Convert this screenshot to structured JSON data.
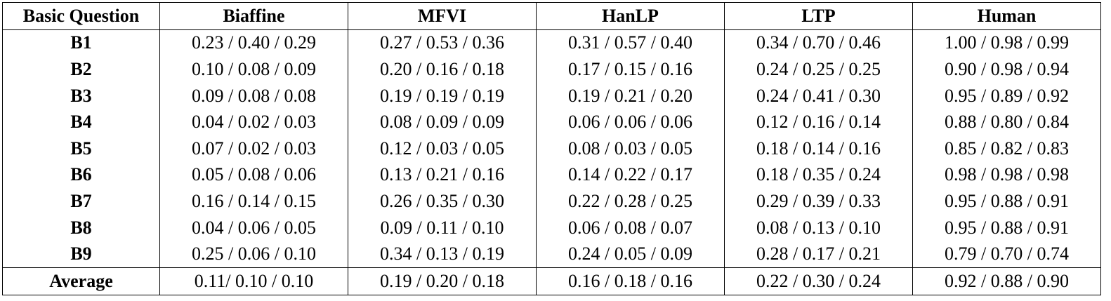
{
  "table": {
    "header": [
      "Basic Question",
      "Biaffine",
      "MFVI",
      "HanLP",
      "LTP",
      "Human"
    ],
    "rows": [
      [
        "B1",
        "0.23 / 0.40 / 0.29",
        "0.27 / 0.53 / 0.36",
        "0.31 / 0.57 / 0.40",
        "0.34 / 0.70 / 0.46",
        "1.00 / 0.98 / 0.99"
      ],
      [
        "B2",
        "0.10 / 0.08 / 0.09",
        "0.20 / 0.16 / 0.18",
        "0.17 / 0.15 / 0.16",
        "0.24 / 0.25 / 0.25",
        "0.90 / 0.98 / 0.94"
      ],
      [
        "B3",
        "0.09 / 0.08 / 0.08",
        "0.19 / 0.19 / 0.19",
        "0.19 / 0.21 / 0.20",
        "0.24 / 0.41 / 0.30",
        "0.95 / 0.89 / 0.92"
      ],
      [
        "B4",
        "0.04 / 0.02 / 0.03",
        "0.08 / 0.09 / 0.09",
        "0.06 / 0.06 / 0.06",
        "0.12 / 0.16 / 0.14",
        "0.88 / 0.80 / 0.84"
      ],
      [
        "B5",
        "0.07 / 0.02 / 0.03",
        "0.12 / 0.03 / 0.05",
        "0.08 / 0.03 / 0.05",
        "0.18 / 0.14 / 0.16",
        "0.85 / 0.82 / 0.83"
      ],
      [
        "B6",
        "0.05 / 0.08 / 0.06",
        "0.13 / 0.21 / 0.16",
        "0.14 / 0.22 / 0.17",
        "0.18 / 0.35 / 0.24",
        "0.98 / 0.98 / 0.98"
      ],
      [
        "B7",
        "0.16 / 0.14 / 0.15",
        "0.26 / 0.35 / 0.30",
        "0.22 / 0.28 / 0.25",
        "0.29 / 0.39 / 0.33",
        "0.95 / 0.88 / 0.91"
      ],
      [
        "B8",
        "0.04 / 0.06 / 0.05",
        "0.09 / 0.11 / 0.10",
        "0.06 / 0.08 / 0.07",
        "0.08 / 0.13 / 0.10",
        "0.95 / 0.88 / 0.91"
      ],
      [
        "B9",
        "0.25 / 0.06 / 0.10",
        "0.34 / 0.13 / 0.19",
        "0.24 / 0.05 / 0.09",
        "0.28 / 0.17 / 0.21",
        "0.79 / 0.70 / 0.74"
      ],
      [
        "Average",
        "0.11/ 0.10 / 0.10",
        "0.19 / 0.20 / 0.18",
        "0.16 / 0.18 / 0.16",
        "0.22 / 0.30 / 0.24",
        "0.92 / 0.88 / 0.90"
      ]
    ]
  }
}
